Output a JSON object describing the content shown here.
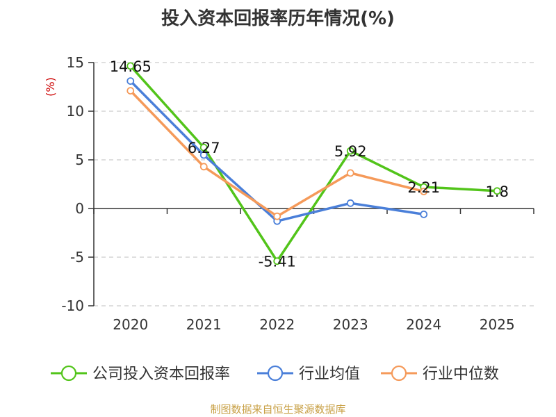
{
  "chart_data": {
    "type": "line",
    "title": "投入资本回报率历年情况(%)",
    "ylabel": "(%)",
    "xlabel": "",
    "categories": [
      "2020",
      "2021",
      "2022",
      "2023",
      "2024",
      "2025"
    ],
    "ylim": [
      -10,
      15
    ],
    "yticks": [
      15,
      10,
      5,
      0,
      -5,
      -10
    ],
    "grid": true,
    "legend_position": "bottom",
    "series": [
      {
        "name": "公司投入资本回报率",
        "color": "#52c41a",
        "values": [
          14.65,
          6.27,
          -5.41,
          5.92,
          2.21,
          1.8
        ],
        "labels": [
          "14.65",
          "6.27",
          "-5.41",
          "5.92",
          "2.21",
          "1.8"
        ]
      },
      {
        "name": "行业均值",
        "color": "#4a7fd9",
        "values": [
          13.1,
          5.5,
          -1.3,
          0.55,
          -0.6,
          null
        ]
      },
      {
        "name": "行业中位数",
        "color": "#f59a5a",
        "values": [
          12.1,
          4.3,
          -0.8,
          3.65,
          1.75,
          null
        ]
      }
    ],
    "source": "制图数据来自恒生聚源数据库"
  }
}
